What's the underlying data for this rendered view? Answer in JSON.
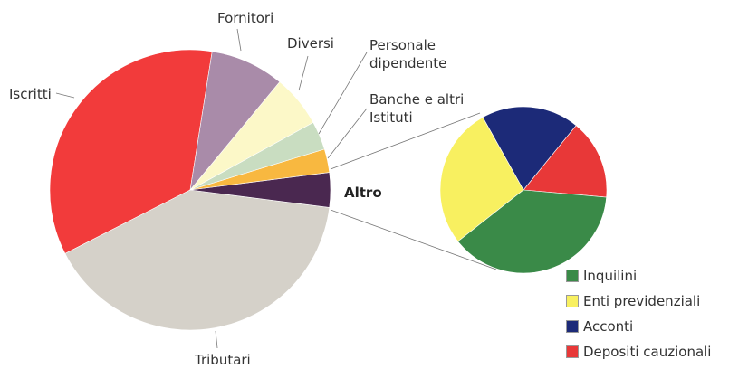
{
  "chart_data": {
    "type": "pie-of-pie",
    "main": {
      "categories": [
        "Fornitori",
        "Diversi",
        "Personale dipendente",
        "Banche e altri Istituti",
        "Altro",
        "Tributari",
        "Iscritti"
      ],
      "values": [
        8.5,
        6,
        3.3,
        2.7,
        4,
        40.5,
        35
      ],
      "colors": [
        "#a98ba9",
        "#fcf8c8",
        "#c9ddc1",
        "#f8b840",
        "#4a2850",
        "#d5d1c9",
        "#f23b3b"
      ]
    },
    "detail": {
      "categories": [
        "Inquilini",
        "Enti previdenziali",
        "Acconti",
        "Depositi cauzionali"
      ],
      "values": [
        38,
        27.5,
        19,
        15.5
      ],
      "colors": [
        "#3a8a48",
        "#f8f060",
        "#1c2a78",
        "#e83838"
      ]
    }
  }
}
